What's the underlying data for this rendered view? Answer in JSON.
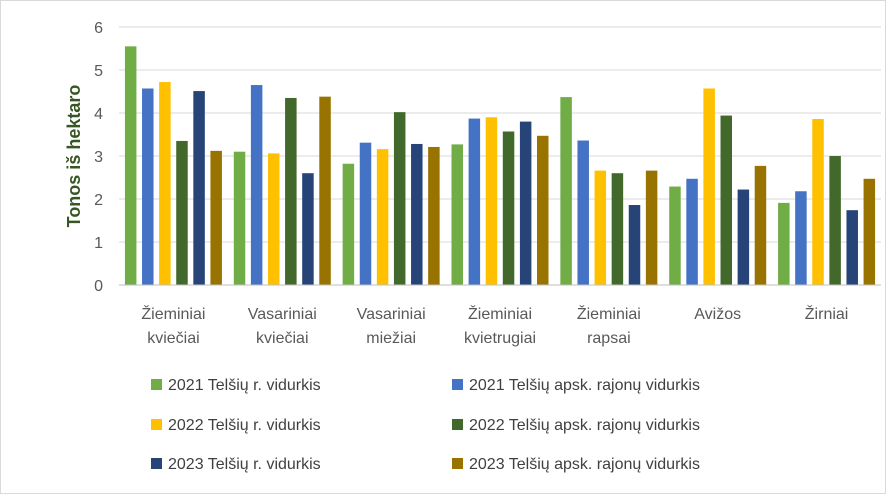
{
  "chart_data": {
    "type": "bar",
    "ylabel": "Tonos iš hektaro",
    "xlabel": "",
    "ylim": [
      0,
      6
    ],
    "yticks": [
      0,
      1,
      2,
      3,
      4,
      5,
      6
    ],
    "grid": true,
    "legend_position": "bottom",
    "categories": [
      [
        "Žieminiai",
        "kviečiai"
      ],
      [
        "Vasariniai",
        "kviečiai"
      ],
      [
        "Vasariniai",
        "miežiai"
      ],
      [
        "Žieminiai",
        "kvietrugiai"
      ],
      [
        "Žieminiai",
        "rapsai"
      ],
      [
        "Avižos"
      ],
      [
        "Žirniai"
      ]
    ],
    "series": [
      {
        "name": "2021 Telšių r. vidurkis",
        "color": "#70ad47",
        "values": [
          5.55,
          3.1,
          2.82,
          3.27,
          4.37,
          2.29,
          1.91
        ]
      },
      {
        "name": "2021 Telšių apsk. rajonų vidurkis",
        "color": "#4472c4",
        "values": [
          4.57,
          4.65,
          3.31,
          3.87,
          3.36,
          2.47,
          2.18
        ]
      },
      {
        "name": "2022 Telšių r. vidurkis",
        "color": "#ffc000",
        "values": [
          4.72,
          3.06,
          3.16,
          3.9,
          2.66,
          4.57,
          3.86
        ]
      },
      {
        "name": "2022 Telšių apsk. rajonų vidurkis",
        "color": "#43682b",
        "values": [
          3.35,
          4.35,
          4.02,
          3.57,
          2.6,
          3.94,
          3.0
        ]
      },
      {
        "name": "2023 Telšių r. vidurkis",
        "color": "#264478",
        "values": [
          4.51,
          2.6,
          3.28,
          3.8,
          1.86,
          2.22,
          1.74
        ]
      },
      {
        "name": "2023 Telšių apsk. rajonų vidurkis",
        "color": "#997300",
        "values": [
          3.12,
          4.38,
          3.21,
          3.47,
          2.66,
          2.77,
          2.47
        ]
      }
    ]
  }
}
